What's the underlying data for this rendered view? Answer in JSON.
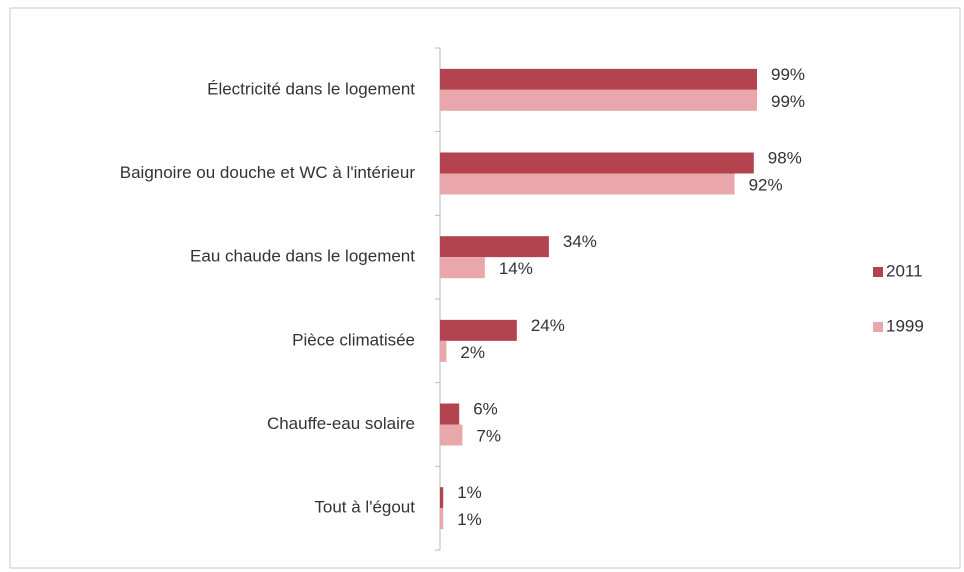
{
  "chart_data": {
    "type": "hbar",
    "categories": [
      "Électricité dans le logement",
      "Baignoire ou douche et WC à l'intérieur",
      "Eau chaude dans le logement",
      "Pièce climatisée",
      "Chauffe-eau solaire",
      "Tout à l'égout"
    ],
    "series": [
      {
        "name": "2011",
        "color": "#b3434f",
        "values": [
          99,
          98,
          34,
          24,
          6,
          1
        ],
        "value_labels": [
          "99%",
          "98%",
          "34%",
          "24%",
          "6%",
          "1%"
        ]
      },
      {
        "name": "1999",
        "color": "#e9a7ab",
        "values": [
          99,
          92,
          14,
          2,
          7,
          1
        ],
        "value_labels": [
          "99%",
          "92%",
          "14%",
          "2%",
          "7%",
          "1%"
        ]
      }
    ],
    "legend": "right"
  }
}
